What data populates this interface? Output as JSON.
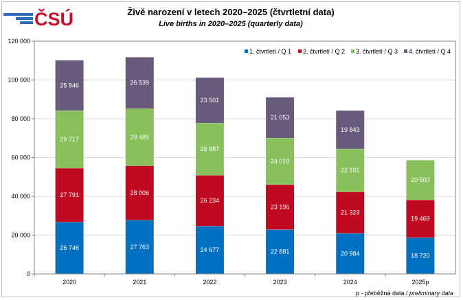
{
  "logo": {
    "text": "ČSÚ",
    "colors": {
      "lines": "#2a6ebb",
      "text": "#c8102e"
    }
  },
  "chart_data": {
    "type": "bar",
    "stacked": true,
    "title": "Živě narození v letech 2020–2025 (čtvrtletní data)",
    "subtitle": "Live births in 2020–2025 (quarterly data)",
    "categories": [
      "2020",
      "2021",
      "2022",
      "2023",
      "2024",
      "2025p"
    ],
    "series": [
      {
        "name": "1. čtvrtletí / Q 1",
        "color": "#0070c0",
        "values": [
          26746,
          27763,
          24677,
          22881,
          20984,
          18720
        ]
      },
      {
        "name": "2. čtvrtletí / Q 2",
        "color": "#c00820",
        "values": [
          27791,
          28006,
          26234,
          23196,
          21323,
          19469
        ]
      },
      {
        "name": "3. čtvrtletí / Q 3",
        "color": "#88c05c",
        "values": [
          29717,
          29485,
          26887,
          24019,
          22161,
          20500
        ]
      },
      {
        "name": "4. čtvrtletí / Q 4",
        "color": "#675a7a",
        "values": [
          25946,
          26539,
          23501,
          21053,
          19843,
          null
        ]
      }
    ],
    "ylim": [
      0,
      120000
    ],
    "yticks": [
      "0",
      "20 000",
      "40 000",
      "60 000",
      "80 000",
      "100 000",
      "120 000"
    ],
    "grid": true,
    "legend": "top-right",
    "footnote": {
      "plain": "p - přeběžná data / ",
      "italic": "preliminary data"
    }
  }
}
